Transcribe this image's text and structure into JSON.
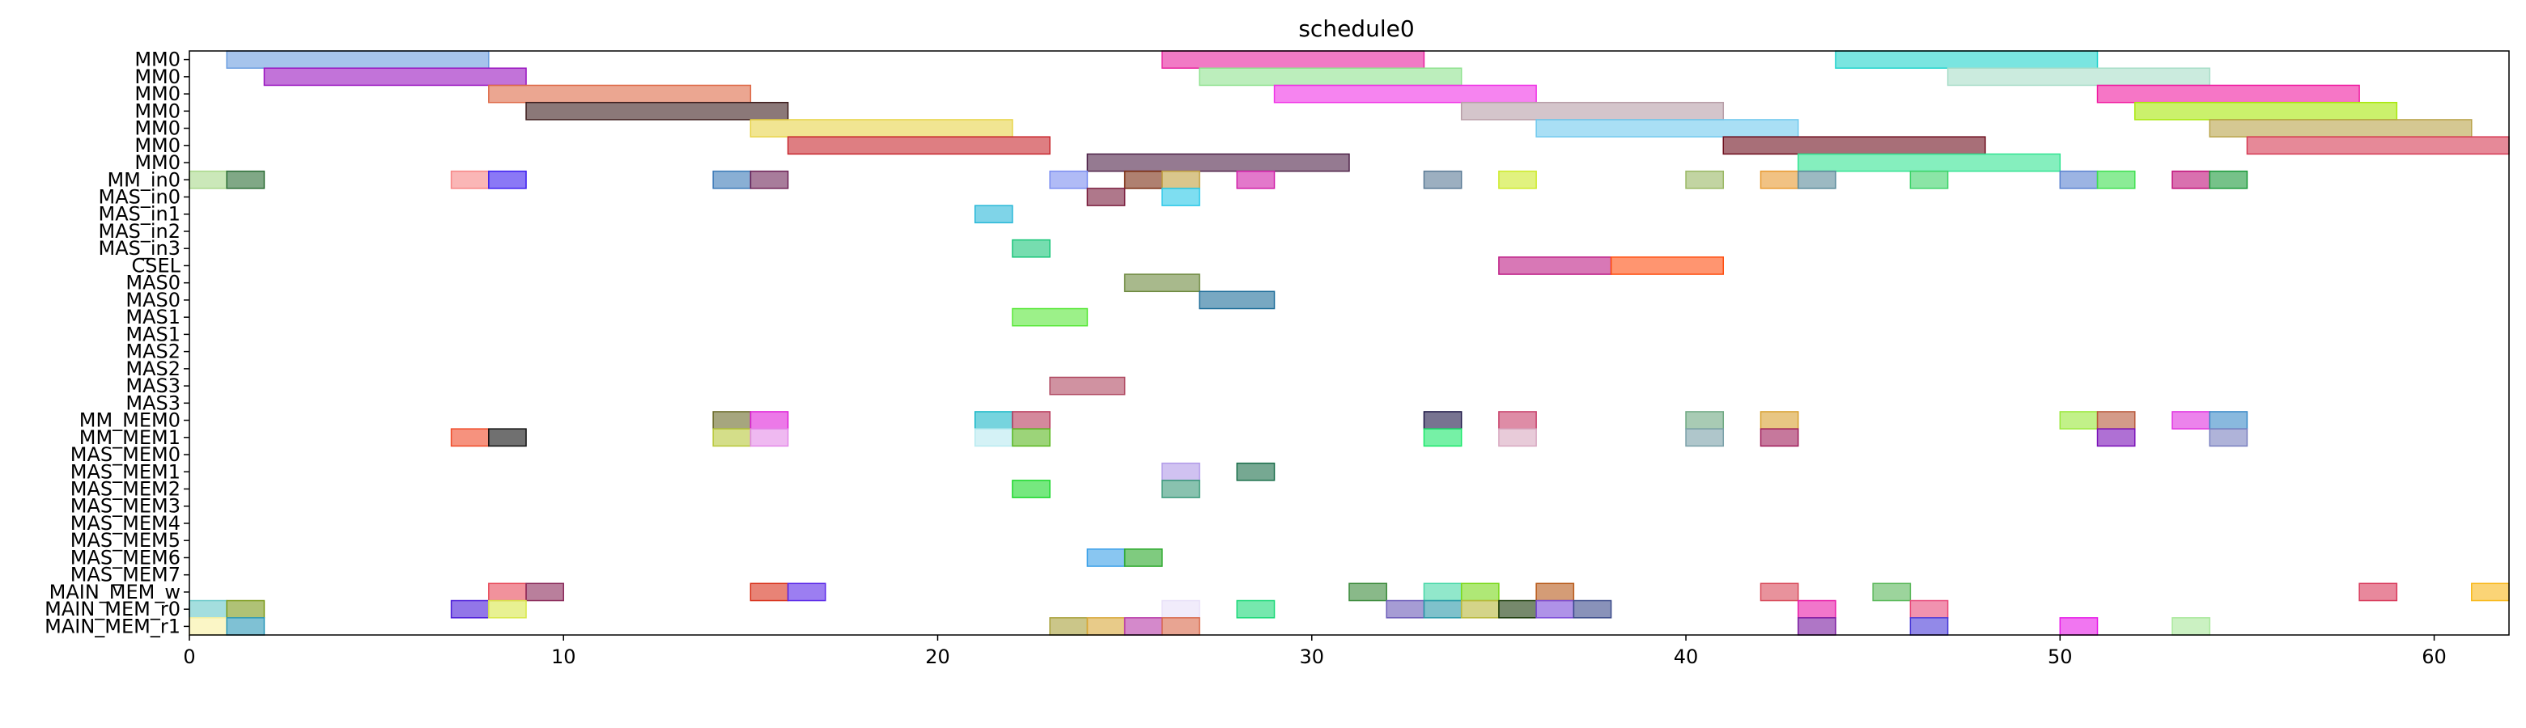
{
  "chart_data": {
    "type": "gantt",
    "title": "schedule0",
    "xlim": [
      0,
      62
    ],
    "x_ticks": [
      0,
      10,
      20,
      30,
      40,
      50,
      60
    ],
    "rows": [
      "MM0",
      "MM0",
      "MM0",
      "MM0",
      "MM0",
      "MM0",
      "MM0",
      "MM_in0",
      "MAS_in0",
      "MAS_in1",
      "MAS_in2",
      "MAS_in3",
      "CSEL",
      "MAS0",
      "MAS0",
      "MAS1",
      "MAS1",
      "MAS2",
      "MAS2",
      "MAS3",
      "MAS3",
      "MM_MEM0",
      "MM_MEM1",
      "MAS_MEM0",
      "MAS_MEM1",
      "MAS_MEM2",
      "MAS_MEM3",
      "MAS_MEM4",
      "MAS_MEM5",
      "MAS_MEM6",
      "MAS_MEM7",
      "MAIN_MEM_w",
      "MAIN_MEM_r0",
      "MAIN_MEM_r1"
    ],
    "tasks": [
      {
        "row": 0,
        "start": 1,
        "end": 8,
        "color": "#6a9de0"
      },
      {
        "row": 0,
        "start": 26,
        "end": 33,
        "color": "#e8219e"
      },
      {
        "row": 0,
        "start": 44,
        "end": 51,
        "color": "#22d3cc"
      },
      {
        "row": 1,
        "start": 2,
        "end": 9,
        "color": "#9a15c0"
      },
      {
        "row": 1,
        "start": 27,
        "end": 34,
        "color": "#90e290"
      },
      {
        "row": 1,
        "start": 47,
        "end": 54,
        "color": "#a8ddc8"
      },
      {
        "row": 2,
        "start": 8,
        "end": 15,
        "color": "#de6a48"
      },
      {
        "row": 2,
        "start": 29,
        "end": 36,
        "color": "#f032e6"
      },
      {
        "row": 2,
        "start": 51,
        "end": 58,
        "color": "#f01aa0"
      },
      {
        "row": 3,
        "start": 9,
        "end": 16,
        "color": "#3e1e1e"
      },
      {
        "row": 3,
        "start": 34,
        "end": 41,
        "color": "#b89ea8"
      },
      {
        "row": 3,
        "start": 52,
        "end": 59,
        "color": "#a8e80a"
      },
      {
        "row": 4,
        "start": 15,
        "end": 22,
        "color": "#e8d44a"
      },
      {
        "row": 4,
        "start": 36,
        "end": 43,
        "color": "#70c9ee"
      },
      {
        "row": 4,
        "start": 54,
        "end": 61,
        "color": "#b9a34a"
      },
      {
        "row": 5,
        "start": 16,
        "end": 23,
        "color": "#c8282e"
      },
      {
        "row": 5,
        "start": 41,
        "end": 48,
        "color": "#6e0f1e"
      },
      {
        "row": 5,
        "start": 55,
        "end": 62,
        "color": "#d63a54"
      },
      {
        "row": 6,
        "start": 24,
        "end": 31,
        "color": "#4e2248"
      },
      {
        "row": 6,
        "start": 43,
        "end": 50,
        "color": "#33e492"
      },
      {
        "row": 7,
        "start": 0,
        "end": 1,
        "color": "#a9d88a"
      },
      {
        "row": 7,
        "start": 1,
        "end": 2,
        "color": "#2c6e36"
      },
      {
        "row": 7,
        "start": 7,
        "end": 8,
        "color": "#f78686"
      },
      {
        "row": 7,
        "start": 8,
        "end": 9,
        "color": "#3d1ef0"
      },
      {
        "row": 7,
        "start": 14,
        "end": 15,
        "color": "#3b7ab8"
      },
      {
        "row": 7,
        "start": 15,
        "end": 16,
        "color": "#6e2458"
      },
      {
        "row": 7,
        "start": 23,
        "end": 24,
        "color": "#7b8ef0"
      },
      {
        "row": 7,
        "start": 25,
        "end": 26,
        "color": "#7a2c10"
      },
      {
        "row": 7,
        "start": 26,
        "end": 27,
        "color": "#c0a040"
      },
      {
        "row": 7,
        "start": 28,
        "end": 29,
        "color": "#d01ea8"
      },
      {
        "row": 7,
        "start": 33,
        "end": 34,
        "color": "#5a7a96"
      },
      {
        "row": 7,
        "start": 35,
        "end": 36,
        "color": "#cdea2a"
      },
      {
        "row": 7,
        "start": 40,
        "end": 41,
        "color": "#9ab864"
      },
      {
        "row": 7,
        "start": 42,
        "end": 43,
        "color": "#e89a30"
      },
      {
        "row": 7,
        "start": 43,
        "end": 44,
        "color": "#5a8a9a"
      },
      {
        "row": 7,
        "start": 46,
        "end": 47,
        "color": "#3ed46a"
      },
      {
        "row": 7,
        "start": 50,
        "end": 51,
        "color": "#5a82d0"
      },
      {
        "row": 7,
        "start": 51,
        "end": 52,
        "color": "#3ee050"
      },
      {
        "row": 7,
        "start": 53,
        "end": 54,
        "color": "#c0107a"
      },
      {
        "row": 7,
        "start": 54,
        "end": 55,
        "color": "#1a9a3a"
      },
      {
        "row": 8,
        "start": 24,
        "end": 25,
        "color": "#7a1e3e"
      },
      {
        "row": 8,
        "start": 26,
        "end": 27,
        "color": "#28c8e8"
      },
      {
        "row": 9,
        "start": 21,
        "end": 22,
        "color": "#29b8d8"
      },
      {
        "row": 11,
        "start": 22,
        "end": 23,
        "color": "#1ac67a"
      },
      {
        "row": 12,
        "start": 35,
        "end": 38,
        "color": "#be1e86"
      },
      {
        "row": 12,
        "start": 38,
        "end": 41,
        "color": "#ff4e10"
      },
      {
        "row": 13,
        "start": 25,
        "end": 27,
        "color": "#6e8a40"
      },
      {
        "row": 14,
        "start": 27,
        "end": 29,
        "color": "#1e6e9a"
      },
      {
        "row": 15,
        "start": 22,
        "end": 24,
        "color": "#5ae83a"
      },
      {
        "row": 19,
        "start": 23,
        "end": 25,
        "color": "#b04a62"
      },
      {
        "row": 21,
        "start": 14,
        "end": 15,
        "color": "#6a6a28"
      },
      {
        "row": 21,
        "start": 15,
        "end": 16,
        "color": "#e020d8"
      },
      {
        "row": 21,
        "start": 21,
        "end": 22,
        "color": "#1ab8c8"
      },
      {
        "row": 21,
        "start": 22,
        "end": 23,
        "color": "#b83a5a"
      },
      {
        "row": 21,
        "start": 33,
        "end": 34,
        "color": "#1e1848"
      },
      {
        "row": 21,
        "start": 35,
        "end": 36,
        "color": "#c8406a"
      },
      {
        "row": 21,
        "start": 40,
        "end": 41,
        "color": "#6ea882"
      },
      {
        "row": 21,
        "start": 42,
        "end": 43,
        "color": "#d8a030"
      },
      {
        "row": 21,
        "start": 50,
        "end": 51,
        "color": "#9ae83a"
      },
      {
        "row": 21,
        "start": 51,
        "end": 52,
        "color": "#b8583a"
      },
      {
        "row": 21,
        "start": 53,
        "end": 54,
        "color": "#e030e0"
      },
      {
        "row": 21,
        "start": 54,
        "end": 55,
        "color": "#3a8ac8"
      },
      {
        "row": 22,
        "start": 7,
        "end": 8,
        "color": "#f04a28"
      },
      {
        "row": 22,
        "start": 8,
        "end": 9,
        "color": "#101010"
      },
      {
        "row": 22,
        "start": 14,
        "end": 15,
        "color": "#b8c83a"
      },
      {
        "row": 22,
        "start": 15,
        "end": 16,
        "color": "#e48ae8"
      },
      {
        "row": 22,
        "start": 21,
        "end": 22,
        "color": "#b8eaf0"
      },
      {
        "row": 22,
        "start": 22,
        "end": 23,
        "color": "#5ab820"
      },
      {
        "row": 22,
        "start": 33,
        "end": 34,
        "color": "#1ae86a"
      },
      {
        "row": 22,
        "start": 35,
        "end": 36,
        "color": "#d8a8c0"
      },
      {
        "row": 22,
        "start": 40,
        "end": 41,
        "color": "#7aa0a8"
      },
      {
        "row": 22,
        "start": 42,
        "end": 43,
        "color": "#a01e5a"
      },
      {
        "row": 22,
        "start": 51,
        "end": 52,
        "color": "#7a10b8"
      },
      {
        "row": 22,
        "start": 54,
        "end": 55,
        "color": "#7a80c0"
      },
      {
        "row": 24,
        "start": 26,
        "end": 27,
        "color": "#b09ae8"
      },
      {
        "row": 24,
        "start": 28,
        "end": 29,
        "color": "#1a6e4a"
      },
      {
        "row": 25,
        "start": 22,
        "end": 23,
        "color": "#1ad82a"
      },
      {
        "row": 25,
        "start": 26,
        "end": 27,
        "color": "#3a9a7a"
      },
      {
        "row": 29,
        "start": 24,
        "end": 25,
        "color": "#3aa0e8"
      },
      {
        "row": 29,
        "start": 25,
        "end": 26,
        "color": "#2aa82a"
      },
      {
        "row": 31,
        "start": 8,
        "end": 9,
        "color": "#e84a5a"
      },
      {
        "row": 31,
        "start": 9,
        "end": 10,
        "color": "#8a2a5a"
      },
      {
        "row": 31,
        "start": 15,
        "end": 16,
        "color": "#d8301a"
      },
      {
        "row": 31,
        "start": 16,
        "end": 17,
        "color": "#5a28e8"
      },
      {
        "row": 31,
        "start": 31,
        "end": 32,
        "color": "#3a8a3a"
      },
      {
        "row": 31,
        "start": 33,
        "end": 34,
        "color": "#48d8a8"
      },
      {
        "row": 31,
        "start": 34,
        "end": 35,
        "color": "#7ad81a"
      },
      {
        "row": 31,
        "start": 36,
        "end": 37,
        "color": "#b85a1a"
      },
      {
        "row": 31,
        "start": 42,
        "end": 43,
        "color": "#d84a5a"
      },
      {
        "row": 31,
        "start": 45,
        "end": 46,
        "color": "#5ab85a"
      },
      {
        "row": 31,
        "start": 58,
        "end": 59,
        "color": "#d8385a"
      },
      {
        "row": 31,
        "start": 61,
        "end": 62,
        "color": "#f8b81a"
      },
      {
        "row": 32,
        "start": 0,
        "end": 1,
        "color": "#68c8c8"
      },
      {
        "row": 32,
        "start": 1,
        "end": 2,
        "color": "#7a9a1a"
      },
      {
        "row": 32,
        "start": 7,
        "end": 8,
        "color": "#4a1ad8"
      },
      {
        "row": 32,
        "start": 8,
        "end": 9,
        "color": "#d8e84a"
      },
      {
        "row": 32,
        "start": 26,
        "end": 27,
        "color": "#e8e0f8"
      },
      {
        "row": 32,
        "start": 28,
        "end": 29,
        "color": "#1ad878"
      },
      {
        "row": 32,
        "start": 32,
        "end": 33,
        "color": "#6a5ab8"
      },
      {
        "row": 32,
        "start": 33,
        "end": 34,
        "color": "#2a98a8"
      },
      {
        "row": 32,
        "start": 34,
        "end": 35,
        "color": "#b8b83a"
      },
      {
        "row": 32,
        "start": 35,
        "end": 36,
        "color": "#1a3a0a"
      },
      {
        "row": 32,
        "start": 36,
        "end": 37,
        "color": "#7a4ad8"
      },
      {
        "row": 32,
        "start": 37,
        "end": 38,
        "color": "#3a4a8a"
      },
      {
        "row": 32,
        "start": 43,
        "end": 44,
        "color": "#e81aa8"
      },
      {
        "row": 32,
        "start": 46,
        "end": 47,
        "color": "#e84a7a"
      },
      {
        "row": 33,
        "start": 0,
        "end": 1,
        "color": "#f8f0a0"
      },
      {
        "row": 33,
        "start": 1,
        "end": 2,
        "color": "#2a98b8"
      },
      {
        "row": 33,
        "start": 23,
        "end": 24,
        "color": "#a8a03a"
      },
      {
        "row": 33,
        "start": 24,
        "end": 25,
        "color": "#d8a83a"
      },
      {
        "row": 33,
        "start": 25,
        "end": 26,
        "color": "#b83aa8"
      },
      {
        "row": 33,
        "start": 26,
        "end": 27,
        "color": "#d8684a"
      },
      {
        "row": 33,
        "start": 43,
        "end": 44,
        "color": "#7a1aa0"
      },
      {
        "row": 33,
        "start": 46,
        "end": 47,
        "color": "#4a3ad8"
      },
      {
        "row": 33,
        "start": 50,
        "end": 51,
        "color": "#e81ae8"
      },
      {
        "row": 33,
        "start": 53,
        "end": 54,
        "color": "#a8e89a"
      }
    ]
  }
}
